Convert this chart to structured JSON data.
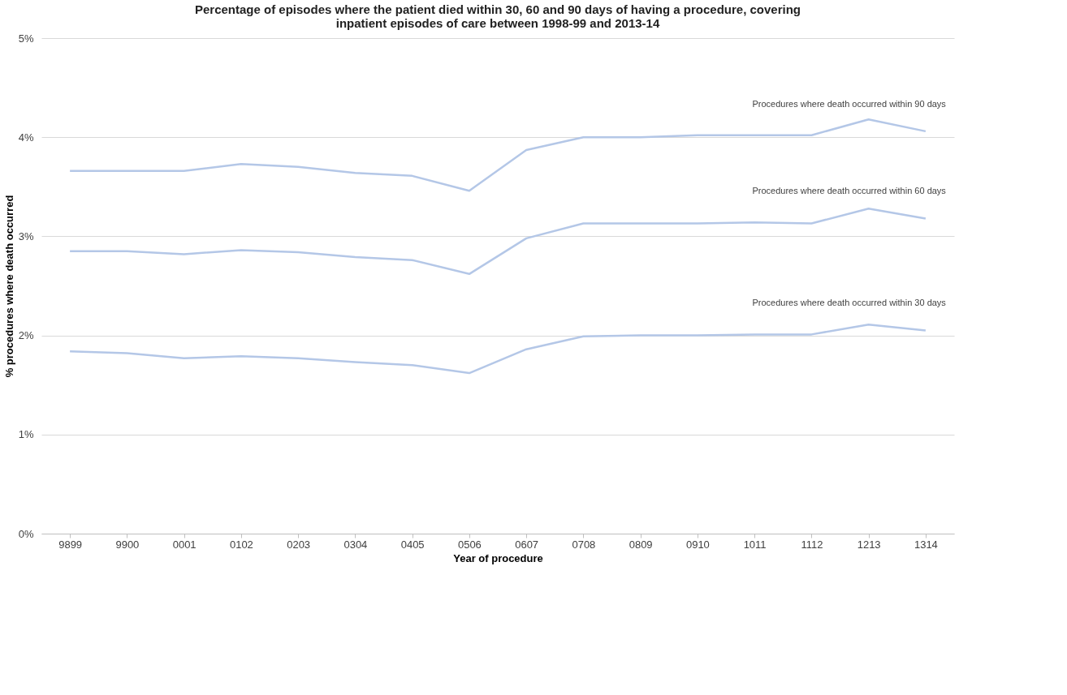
{
  "chart_data": {
    "type": "line",
    "title": "Percentage of episodes where the patient died within 30, 60 and 90 days of having a procedure, covering inpatient episodes of care between 1998-99 and 2013-14",
    "xlabel": "Year of procedure",
    "ylabel": "% procedures where death occurred",
    "categories": [
      "9899",
      "9900",
      "0001",
      "0102",
      "0203",
      "0304",
      "0405",
      "0506",
      "0607",
      "0708",
      "0809",
      "0910",
      "1011",
      "1112",
      "1213",
      "1314"
    ],
    "series": [
      {
        "name": "Procedures where death occurred within 90 days",
        "color": "#b4c7e7",
        "values": [
          3.66,
          3.66,
          3.66,
          3.73,
          3.7,
          3.64,
          3.61,
          3.46,
          3.87,
          4.0,
          4.0,
          4.02,
          4.02,
          4.02,
          4.18,
          4.06
        ]
      },
      {
        "name": "Procedures where death occurred within 60 days",
        "color": "#b4c7e7",
        "values": [
          2.85,
          2.85,
          2.82,
          2.86,
          2.84,
          2.79,
          2.76,
          2.62,
          2.98,
          3.13,
          3.13,
          3.13,
          3.14,
          3.13,
          3.28,
          3.18
        ]
      },
      {
        "name": "Procedures where death occurred within 30 days",
        "color": "#b4c7e7",
        "values": [
          1.84,
          1.82,
          1.77,
          1.79,
          1.77,
          1.73,
          1.7,
          1.62,
          1.86,
          1.99,
          2.0,
          2.0,
          2.01,
          2.01,
          2.11,
          2.05
        ]
      }
    ],
    "ylim": [
      0,
      5
    ],
    "yticks": [
      {
        "value": 0,
        "label": "0%"
      },
      {
        "value": 1,
        "label": "1%"
      },
      {
        "value": 2,
        "label": "2%"
      },
      {
        "value": 3,
        "label": "3%"
      },
      {
        "value": 4,
        "label": "4%"
      },
      {
        "value": 5,
        "label": "5%"
      }
    ],
    "grid": "y",
    "marker": "none",
    "line_style": "solid"
  }
}
